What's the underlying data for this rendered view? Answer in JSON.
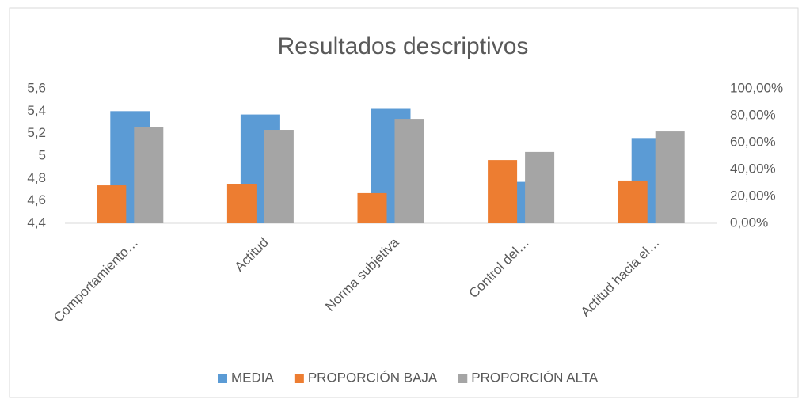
{
  "chart_data": {
    "type": "bar",
    "title": "Resultados descriptivos",
    "categories": [
      "Comportamiento…",
      "Actitud",
      "Norma subjetiva",
      "Control del…",
      "Actitud hacia el…"
    ],
    "series": [
      {
        "name": "MEDIA",
        "color": "#5b9bd5",
        "values": [
          5.4,
          5.37,
          5.42,
          4.77,
          5.16
        ]
      },
      {
        "name": "PROPORCIÓN BAJA",
        "color": "#ed7d31",
        "axis": "y2",
        "values": [
          28.2,
          29.4,
          22.4,
          47,
          31.8
        ]
      },
      {
        "name": "PROPORCIÓN ALTA",
        "color": "#a5a5a5",
        "axis": "y2",
        "values": [
          71.2,
          69.4,
          77.6,
          53,
          68.2
        ]
      }
    ],
    "ylim": [
      4.4,
      5.6
    ],
    "yticks": [
      {
        "value": 4.4,
        "label": "4,4"
      },
      {
        "value": 4.6,
        "label": "4,6"
      },
      {
        "value": 4.8,
        "label": "4,8"
      },
      5,
      {
        "value": 5.2,
        "label": "5,2"
      },
      {
        "value": 5.4,
        "label": "5,4"
      },
      {
        "value": 5.6,
        "label": "5,6"
      }
    ],
    "y2lim": [
      0,
      100
    ],
    "y2ticks": [
      {
        "value": 0,
        "label": "0,00%"
      },
      {
        "value": 20,
        "label": "20,00%"
      },
      {
        "value": 40,
        "label": "40,00%"
      },
      {
        "value": 60,
        "label": "60,00%"
      },
      {
        "value": 80,
        "label": "80,00%"
      },
      {
        "value": 100,
        "label": "100,00%"
      }
    ],
    "grid": false,
    "legend": "bottom"
  }
}
